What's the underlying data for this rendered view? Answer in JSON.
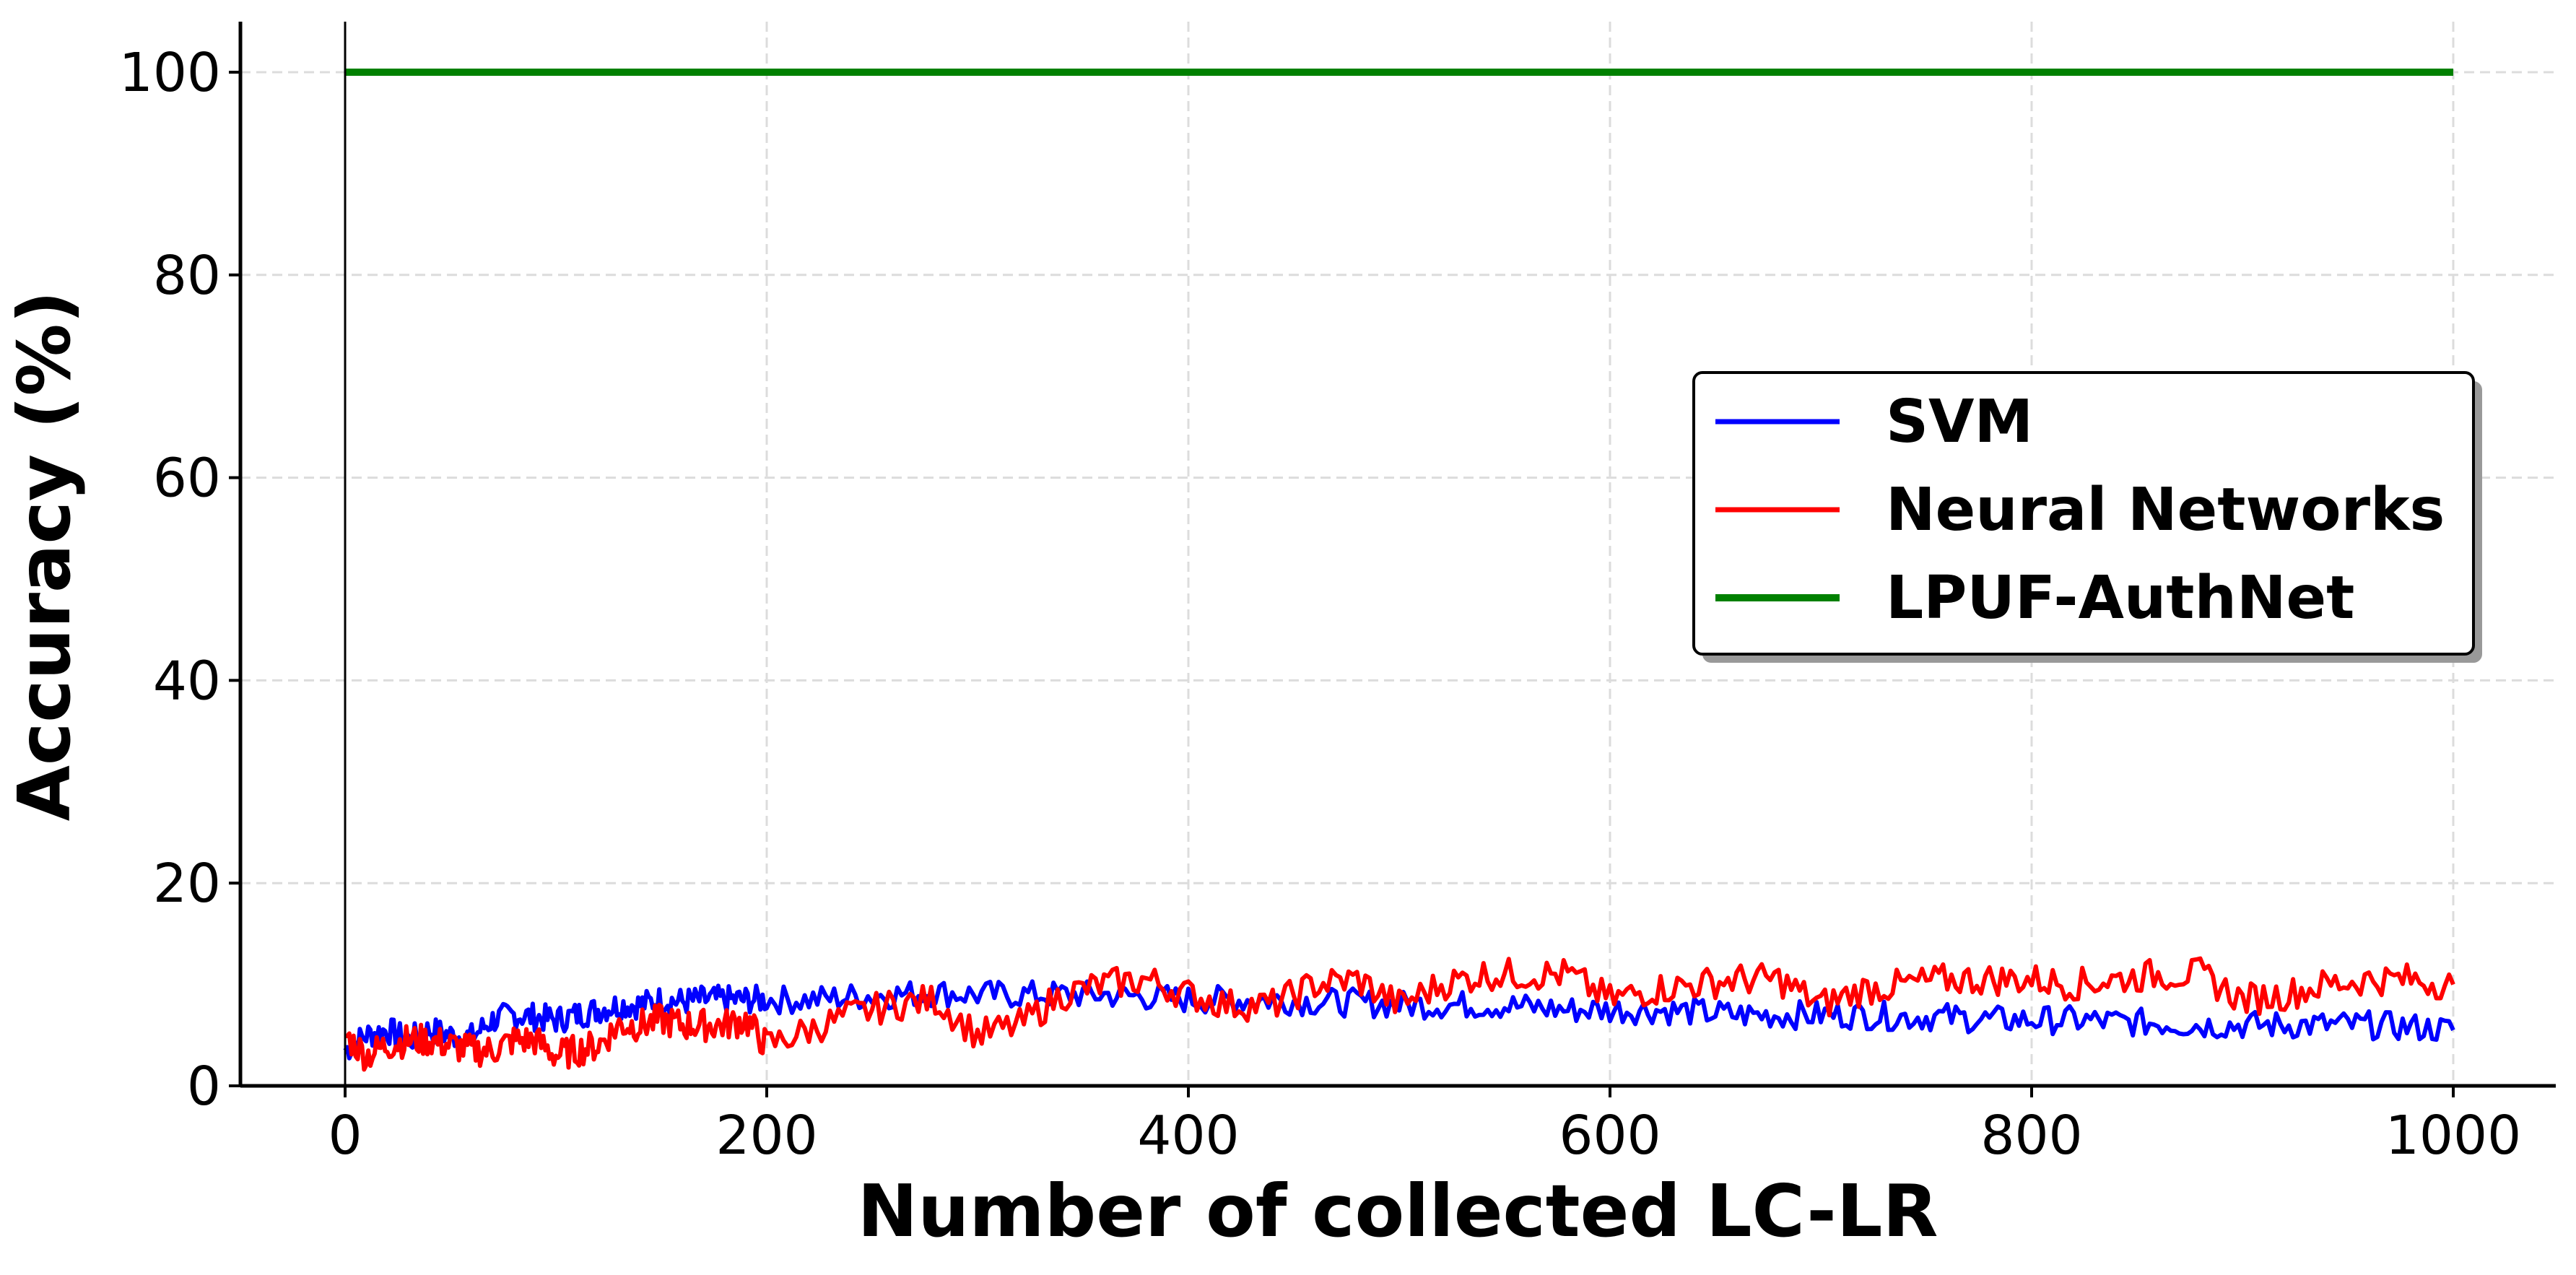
{
  "chart_data": {
    "type": "line",
    "title": "",
    "xlabel": "Number of collected LC-LR",
    "ylabel": "Accuracy (%)",
    "xlim": [
      -50,
      1050
    ],
    "ylim": [
      0,
      105
    ],
    "xticks": [
      0,
      200,
      400,
      600,
      800,
      1000
    ],
    "yticks": [
      0,
      20,
      40,
      60,
      80,
      100
    ],
    "grid": true,
    "legend_position": "center-right",
    "series": [
      {
        "name": "SVM",
        "color": "#0000ff",
        "x": [
          0,
          10,
          20,
          30,
          40,
          50,
          60,
          70,
          80,
          90,
          100,
          110,
          120,
          130,
          140,
          150,
          160,
          170,
          180,
          190,
          200,
          220,
          240,
          260,
          280,
          300,
          320,
          340,
          360,
          380,
          400,
          420,
          440,
          460,
          480,
          500,
          520,
          540,
          560,
          580,
          600,
          620,
          640,
          660,
          680,
          700,
          720,
          740,
          760,
          780,
          800,
          820,
          840,
          860,
          880,
          900,
          920,
          940,
          960,
          980,
          1000
        ],
        "y": [
          3.5,
          5.0,
          5.5,
          4.5,
          5.5,
          5.0,
          4.8,
          6.5,
          7.0,
          6.8,
          6.5,
          7.0,
          7.5,
          8.0,
          8.0,
          8.5,
          8.3,
          8.5,
          8.5,
          8.5,
          8.5,
          8.5,
          8.8,
          9.0,
          9.2,
          9.0,
          9.0,
          9.0,
          9.0,
          8.8,
          8.5,
          8.5,
          8.5,
          8.3,
          8.2,
          8.0,
          8.0,
          8.0,
          7.8,
          7.5,
          7.5,
          7.5,
          7.3,
          7.0,
          7.0,
          7.0,
          7.0,
          6.8,
          6.8,
          6.5,
          6.5,
          6.5,
          6.3,
          6.2,
          6.0,
          6.0,
          6.0,
          6.0,
          6.0,
          5.8,
          5.5
        ]
      },
      {
        "name": "Neural Networks",
        "color": "#ff0000",
        "x": [
          0,
          10,
          20,
          30,
          40,
          50,
          60,
          70,
          80,
          90,
          100,
          110,
          120,
          130,
          140,
          150,
          160,
          170,
          180,
          190,
          200,
          220,
          240,
          260,
          280,
          300,
          320,
          340,
          360,
          380,
          400,
          420,
          440,
          460,
          480,
          500,
          520,
          540,
          560,
          580,
          600,
          620,
          640,
          660,
          680,
          700,
          720,
          740,
          760,
          780,
          800,
          820,
          840,
          860,
          880,
          900,
          920,
          940,
          960,
          980,
          1000
        ],
        "y": [
          5.0,
          3.0,
          4.0,
          4.5,
          4.5,
          4.0,
          3.5,
          3.5,
          4.5,
          4.5,
          3.0,
          3.5,
          4.0,
          6.0,
          6.0,
          6.5,
          6.0,
          6.0,
          6.0,
          6.5,
          4.0,
          5.5,
          7.0,
          8.0,
          8.5,
          5.0,
          6.0,
          9.0,
          10.0,
          10.5,
          9.0,
          8.0,
          8.0,
          10.0,
          10.5,
          8.0,
          10.0,
          11.0,
          11.0,
          11.0,
          8.5,
          9.5,
          10.0,
          10.5,
          10.5,
          8.0,
          9.5,
          10.0,
          10.5,
          10.5,
          10.5,
          10.0,
          10.5,
          11.0,
          11.0,
          8.5,
          9.0,
          10.0,
          10.5,
          10.5,
          10.0
        ]
      },
      {
        "name": "LPUF-AuthNet",
        "color": "#008000",
        "x": [
          0,
          1000
        ],
        "y": [
          100,
          100
        ]
      }
    ]
  }
}
